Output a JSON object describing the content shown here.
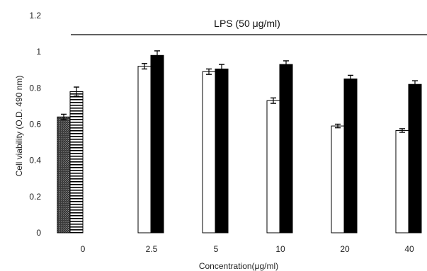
{
  "chart_data": {
    "type": "bar",
    "title": "",
    "xlabel": "Concentration(μg/ml)",
    "ylabel": "Cell viability (O.D. 490 nm)",
    "ylim": [
      0,
      1.2
    ],
    "yticks": [
      "0",
      "0.2",
      "0.4",
      "0.6",
      "0.8",
      "1",
      "1.2"
    ],
    "categories": [
      "0",
      "2.5",
      "5",
      "10",
      "20",
      "40"
    ],
    "annotation": "LPS (50 μg/ml)",
    "grid": false,
    "legend": "none",
    "control_bars": [
      {
        "category": "0",
        "value": 0.64,
        "error": 0.015,
        "pattern": "stippled-dark"
      },
      {
        "category": "0",
        "value": 0.78,
        "error": 0.025,
        "pattern": "horizontal-stripes"
      }
    ],
    "series": [
      {
        "values": [
          null,
          0.92,
          0.89,
          0.73,
          0.59,
          0.565
        ],
        "errors": [
          null,
          0.015,
          0.015,
          0.015,
          0.01,
          0.01
        ],
        "color": "#ffffff"
      },
      {
        "values": [
          null,
          0.98,
          0.905,
          0.93,
          0.85,
          0.82
        ],
        "errors": [
          null,
          0.025,
          0.025,
          0.02,
          0.02,
          0.02
        ],
        "color": "#000000"
      }
    ]
  }
}
